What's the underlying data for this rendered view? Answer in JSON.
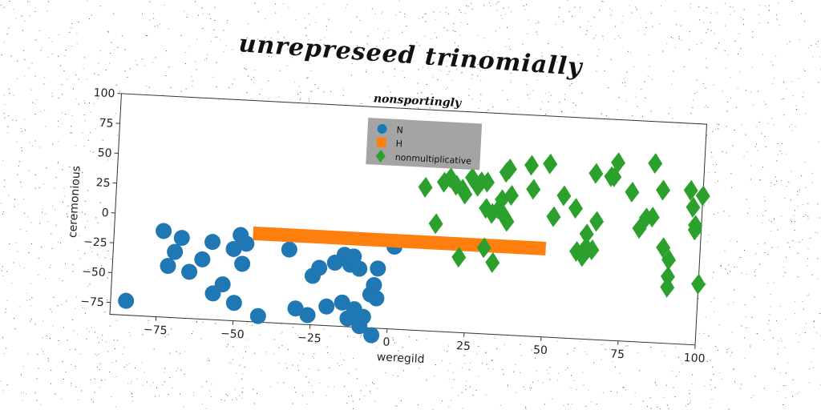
{
  "suptitle": "unrepreseed trinomially",
  "chart_data": {
    "type": "scatter",
    "title": "nonsportingly",
    "xlabel": "weregild",
    "ylabel": "ceremonious",
    "xlim": [
      -90,
      100
    ],
    "ylim": [
      -85,
      100
    ],
    "xticks": [
      -75,
      -50,
      -25,
      0,
      25,
      50,
      75,
      100
    ],
    "yticks": [
      -75,
      -50,
      -25,
      0,
      25,
      50,
      75,
      100
    ],
    "grid": false,
    "legend_placement": "upper center",
    "colors": {
      "N": "#1f77b4",
      "H": "#ff7f0e",
      "nonmultiplicative": "#2ca02c"
    },
    "series": [
      {
        "name": "N",
        "marker": "circle",
        "points": [
          [
            -85,
            -73
          ],
          [
            -74,
            -13
          ],
          [
            -68,
            -18
          ],
          [
            -70,
            -30
          ],
          [
            -72,
            -42
          ],
          [
            -65,
            -46
          ],
          [
            -58,
            -20
          ],
          [
            -61,
            -35
          ],
          [
            -57,
            -63
          ],
          [
            -54,
            -55
          ],
          [
            -49,
            -13
          ],
          [
            -47,
            -20
          ],
          [
            -51,
            -25
          ],
          [
            -48,
            -37
          ],
          [
            -50,
            -70
          ],
          [
            -42,
            -80
          ],
          [
            -33,
            -23
          ],
          [
            -30,
            -72
          ],
          [
            -26,
            -77
          ],
          [
            -25,
            -44
          ],
          [
            -23,
            -37
          ],
          [
            -18,
            -32
          ],
          [
            -15,
            -25
          ],
          [
            -13,
            -33
          ],
          [
            -12,
            -26
          ],
          [
            -10,
            -36
          ],
          [
            -20,
            -69
          ],
          [
            -15,
            -65
          ],
          [
            -13,
            -78
          ],
          [
            -11,
            -70
          ],
          [
            -9,
            -84
          ],
          [
            -8,
            -76
          ],
          [
            -6,
            -57
          ],
          [
            -5,
            -49
          ],
          [
            -4,
            -60
          ],
          [
            -4,
            -35
          ],
          [
            -5,
            -91
          ],
          [
            1,
            -16
          ]
        ]
      },
      {
        "name": "H",
        "marker": "line",
        "segment": [
          [
            -45,
            -11
          ],
          [
            50,
            -11
          ]
        ]
      },
      {
        "name": "nonmultiplicative",
        "marker": "diamond",
        "points": [
          [
            10,
            35
          ],
          [
            14,
            5
          ],
          [
            16,
            40
          ],
          [
            18,
            44
          ],
          [
            20,
            38
          ],
          [
            22,
            35
          ],
          [
            23,
            31
          ],
          [
            22,
            -22
          ],
          [
            25,
            45
          ],
          [
            27,
            38
          ],
          [
            28,
            42
          ],
          [
            30,
            42
          ],
          [
            30,
            -13
          ],
          [
            30,
            20
          ],
          [
            32,
            16
          ],
          [
            33,
            -25
          ],
          [
            34,
            20
          ],
          [
            35,
            28
          ],
          [
            36,
            14
          ],
          [
            37,
            10
          ],
          [
            36,
            51
          ],
          [
            37,
            54
          ],
          [
            38,
            32
          ],
          [
            44,
            58
          ],
          [
            45,
            38
          ],
          [
            50,
            60
          ],
          [
            52,
            16
          ],
          [
            55,
            34
          ],
          [
            59,
            24
          ],
          [
            60,
            -12
          ],
          [
            62,
            -16
          ],
          [
            63,
            -8
          ],
          [
            63,
            3
          ],
          [
            65,
            -10
          ],
          [
            65,
            54
          ],
          [
            66,
            14
          ],
          [
            70,
            52
          ],
          [
            71,
            52
          ],
          [
            72,
            64
          ],
          [
            77,
            40
          ],
          [
            80,
            10
          ],
          [
            82,
            19
          ],
          [
            84,
            20
          ],
          [
            84,
            65
          ],
          [
            87,
            43
          ],
          [
            88,
            -5
          ],
          [
            90,
            -15
          ],
          [
            90,
            -29
          ],
          [
            90,
            -38
          ],
          [
            96,
            44
          ],
          [
            97,
            30
          ],
          [
            98,
            11
          ],
          [
            98,
            15
          ],
          [
            100,
            -34
          ],
          [
            100,
            40
          ]
        ]
      }
    ]
  }
}
